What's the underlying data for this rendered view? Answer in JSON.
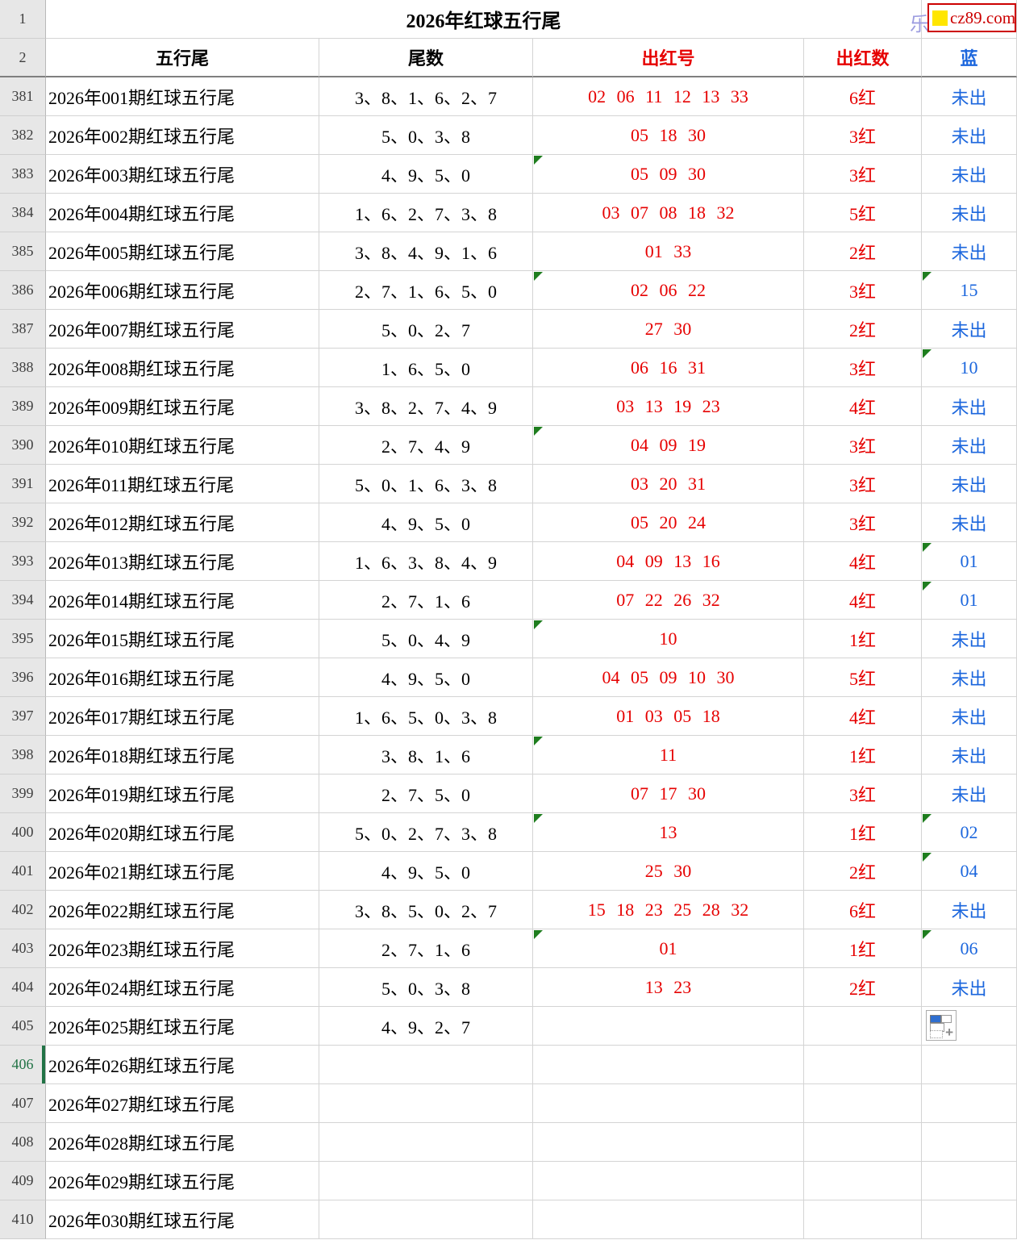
{
  "title": "2026年红球五行尾",
  "logo": {
    "prefix_char": "乐",
    "text": "cz89.com"
  },
  "corner": {
    "row1": "1",
    "row2": "2"
  },
  "columns": [
    {
      "label": "五行尾",
      "color": "black"
    },
    {
      "label": "尾数",
      "color": "black"
    },
    {
      "label": "出红号",
      "color": "red"
    },
    {
      "label": "出红数",
      "color": "red"
    },
    {
      "label": "蓝",
      "color": "blue"
    }
  ],
  "colors": {
    "red": "#e60000",
    "blue": "#1b66dd",
    "tri_green": "#1e7d1e",
    "sel_green": "#217346",
    "logo_red": "#cc0000",
    "logo_yellow": "#ffe600"
  },
  "rows": [
    {
      "row_num": "381",
      "period": "2026年001期红球五行尾",
      "tails": "3、8、1、6、2、7",
      "reds": "02 06 11 12 13 33",
      "count": "6红",
      "blue": "未出",
      "tri_red": false,
      "tri_blue": false,
      "selected": false,
      "paste_icon": false
    },
    {
      "row_num": "382",
      "period": "2026年002期红球五行尾",
      "tails": "5、0、3、8",
      "reds": "05 18 30",
      "count": "3红",
      "blue": "未出",
      "tri_red": false,
      "tri_blue": false,
      "selected": false,
      "paste_icon": false
    },
    {
      "row_num": "383",
      "period": "2026年003期红球五行尾",
      "tails": "4、9、5、0",
      "reds": "05 09 30",
      "count": "3红",
      "blue": "未出",
      "tri_red": true,
      "tri_blue": false,
      "selected": false,
      "paste_icon": false
    },
    {
      "row_num": "384",
      "period": "2026年004期红球五行尾",
      "tails": "1、6、2、7、3、8",
      "reds": "03 07 08 18 32",
      "count": "5红",
      "blue": "未出",
      "tri_red": false,
      "tri_blue": false,
      "selected": false,
      "paste_icon": false
    },
    {
      "row_num": "385",
      "period": "2026年005期红球五行尾",
      "tails": "3、8、4、9、1、6",
      "reds": "01 33",
      "count": "2红",
      "blue": "未出",
      "tri_red": false,
      "tri_blue": false,
      "selected": false,
      "paste_icon": false
    },
    {
      "row_num": "386",
      "period": "2026年006期红球五行尾",
      "tails": "2、7、1、6、5、0",
      "reds": "02 06 22",
      "count": "3红",
      "blue": "15",
      "tri_red": true,
      "tri_blue": true,
      "selected": false,
      "paste_icon": false
    },
    {
      "row_num": "387",
      "period": "2026年007期红球五行尾",
      "tails": "5、0、2、7",
      "reds": "27 30",
      "count": "2红",
      "blue": "未出",
      "tri_red": false,
      "tri_blue": false,
      "selected": false,
      "paste_icon": false
    },
    {
      "row_num": "388",
      "period": "2026年008期红球五行尾",
      "tails": "1、6、5、0",
      "reds": "06 16 31",
      "count": "3红",
      "blue": "10",
      "tri_red": false,
      "tri_blue": true,
      "selected": false,
      "paste_icon": false
    },
    {
      "row_num": "389",
      "period": "2026年009期红球五行尾",
      "tails": "3、8、2、7、4、9",
      "reds": "03 13 19 23",
      "count": "4红",
      "blue": "未出",
      "tri_red": false,
      "tri_blue": false,
      "selected": false,
      "paste_icon": false
    },
    {
      "row_num": "390",
      "period": "2026年010期红球五行尾",
      "tails": "2、7、4、9",
      "reds": "04 09 19",
      "count": "3红",
      "blue": "未出",
      "tri_red": true,
      "tri_blue": false,
      "selected": false,
      "paste_icon": false
    },
    {
      "row_num": "391",
      "period": "2026年011期红球五行尾",
      "tails": "5、0、1、6、3、8",
      "reds": "03 20 31",
      "count": "3红",
      "blue": "未出",
      "tri_red": false,
      "tri_blue": false,
      "selected": false,
      "paste_icon": false
    },
    {
      "row_num": "392",
      "period": "2026年012期红球五行尾",
      "tails": "4、9、5、0",
      "reds": "05 20 24",
      "count": "3红",
      "blue": "未出",
      "tri_red": false,
      "tri_blue": false,
      "selected": false,
      "paste_icon": false
    },
    {
      "row_num": "393",
      "period": "2026年013期红球五行尾",
      "tails": "1、6、3、8、4、9",
      "reds": "04 09 13 16",
      "count": "4红",
      "blue": "01",
      "tri_red": false,
      "tri_blue": true,
      "selected": false,
      "paste_icon": false
    },
    {
      "row_num": "394",
      "period": "2026年014期红球五行尾",
      "tails": "2、7、1、6",
      "reds": "07 22 26 32",
      "count": "4红",
      "blue": "01",
      "tri_red": false,
      "tri_blue": true,
      "selected": false,
      "paste_icon": false
    },
    {
      "row_num": "395",
      "period": "2026年015期红球五行尾",
      "tails": "5、0、4、9",
      "reds": "10",
      "count": "1红",
      "blue": "未出",
      "tri_red": true,
      "tri_blue": false,
      "selected": false,
      "paste_icon": false
    },
    {
      "row_num": "396",
      "period": "2026年016期红球五行尾",
      "tails": "4、9、5、0",
      "reds": "04 05 09 10 30",
      "count": "5红",
      "blue": "未出",
      "tri_red": false,
      "tri_blue": false,
      "selected": false,
      "paste_icon": false
    },
    {
      "row_num": "397",
      "period": "2026年017期红球五行尾",
      "tails": "1、6、5、0、3、8",
      "reds": "01 03 05 18",
      "count": "4红",
      "blue": "未出",
      "tri_red": false,
      "tri_blue": false,
      "selected": false,
      "paste_icon": false
    },
    {
      "row_num": "398",
      "period": "2026年018期红球五行尾",
      "tails": "3、8、1、6",
      "reds": "11",
      "count": "1红",
      "blue": "未出",
      "tri_red": true,
      "tri_blue": false,
      "selected": false,
      "paste_icon": false
    },
    {
      "row_num": "399",
      "period": "2026年019期红球五行尾",
      "tails": "2、7、5、0",
      "reds": "07 17 30",
      "count": "3红",
      "blue": "未出",
      "tri_red": false,
      "tri_blue": false,
      "selected": false,
      "paste_icon": false
    },
    {
      "row_num": "400",
      "period": "2026年020期红球五行尾",
      "tails": "5、0、2、7、3、8",
      "reds": "13",
      "count": "1红",
      "blue": "02",
      "tri_red": true,
      "tri_blue": true,
      "selected": false,
      "paste_icon": false
    },
    {
      "row_num": "401",
      "period": "2026年021期红球五行尾",
      "tails": "4、9、5、0",
      "reds": "25 30",
      "count": "2红",
      "blue": "04",
      "tri_red": false,
      "tri_blue": true,
      "selected": false,
      "paste_icon": false
    },
    {
      "row_num": "402",
      "period": "2026年022期红球五行尾",
      "tails": "3、8、5、0、2、7",
      "reds": "15 18 23 25 28 32",
      "count": "6红",
      "blue": "未出",
      "tri_red": false,
      "tri_blue": false,
      "selected": false,
      "paste_icon": false
    },
    {
      "row_num": "403",
      "period": "2026年023期红球五行尾",
      "tails": "2、7、1、6",
      "reds": "01",
      "count": "1红",
      "blue": "06",
      "tri_red": true,
      "tri_blue": true,
      "selected": false,
      "paste_icon": false
    },
    {
      "row_num": "404",
      "period": "2026年024期红球五行尾",
      "tails": "5、0、3、8",
      "reds": "13 23",
      "count": "2红",
      "blue": "未出",
      "tri_red": false,
      "tri_blue": false,
      "selected": false,
      "paste_icon": false
    },
    {
      "row_num": "405",
      "period": "2026年025期红球五行尾",
      "tails": "4、9、2、7",
      "reds": "",
      "count": "",
      "blue": "",
      "tri_red": false,
      "tri_blue": false,
      "selected": false,
      "paste_icon": true
    },
    {
      "row_num": "406",
      "period": "2026年026期红球五行尾",
      "tails": "",
      "reds": "",
      "count": "",
      "blue": "",
      "tri_red": false,
      "tri_blue": false,
      "selected": true,
      "paste_icon": false
    },
    {
      "row_num": "407",
      "period": "2026年027期红球五行尾",
      "tails": "",
      "reds": "",
      "count": "",
      "blue": "",
      "tri_red": false,
      "tri_blue": false,
      "selected": false,
      "paste_icon": false
    },
    {
      "row_num": "408",
      "period": "2026年028期红球五行尾",
      "tails": "",
      "reds": "",
      "count": "",
      "blue": "",
      "tri_red": false,
      "tri_blue": false,
      "selected": false,
      "paste_icon": false
    },
    {
      "row_num": "409",
      "period": "2026年029期红球五行尾",
      "tails": "",
      "reds": "",
      "count": "",
      "blue": "",
      "tri_red": false,
      "tri_blue": false,
      "selected": false,
      "paste_icon": false
    },
    {
      "row_num": "410",
      "period": "2026年030期红球五行尾",
      "tails": "",
      "reds": "",
      "count": "",
      "blue": "",
      "tri_red": false,
      "tri_blue": false,
      "selected": false,
      "paste_icon": false
    }
  ]
}
